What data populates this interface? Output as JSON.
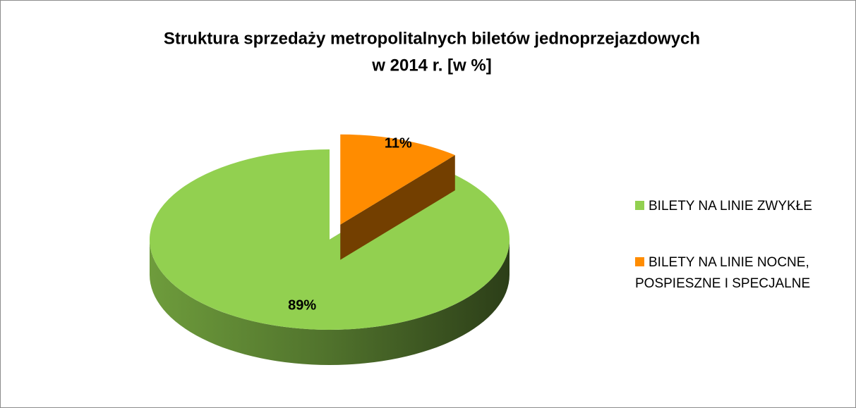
{
  "chart_data": {
    "type": "pie",
    "title": [
      "Struktura sprzedaży metropolitalnych biletów jednoprzejazdowych",
      "w 2014 r. [w %]"
    ],
    "categories": [
      "BILETY NA LINIE ZWYKŁE",
      "BILETY NA LINIE NOCNE, POSPIESZNE I SPECJALNE"
    ],
    "values": [
      89,
      11
    ],
    "value_labels": [
      "89%",
      "11%"
    ],
    "colors": [
      "#92d050",
      "#ff8c00"
    ],
    "exploded": [
      false,
      true
    ],
    "legend": "right"
  }
}
